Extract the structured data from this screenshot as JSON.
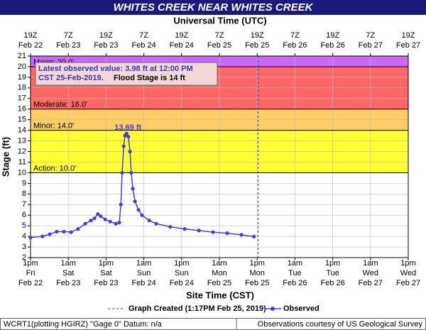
{
  "chart_data": {
    "type": "line",
    "title": "WHITES CREEK NEAR WHITES CREEK",
    "x2_label": "Universal Time (UTC)",
    "x_label": "Site Time (CST)",
    "y_label": "Stage (ft)",
    "xlim": [
      0,
      120
    ],
    "ylim": [
      2,
      21
    ],
    "yticks": [
      2,
      3,
      4,
      5,
      6,
      7,
      8,
      9,
      10,
      11,
      12,
      13,
      14,
      15,
      16,
      17,
      18,
      19,
      20,
      21
    ],
    "xticks": [
      {
        "value": 0,
        "label": [
          "1pm",
          "Fri",
          "Feb 22"
        ]
      },
      {
        "value": 12,
        "label": [
          "1am",
          "Sat",
          "Feb 23"
        ]
      },
      {
        "value": 24,
        "label": [
          "1pm",
          "Sat",
          "Feb 23"
        ]
      },
      {
        "value": 36,
        "label": [
          "1am",
          "Sun",
          "Feb 24"
        ]
      },
      {
        "value": 48,
        "label": [
          "1pm",
          "Sun",
          "Feb 24"
        ]
      },
      {
        "value": 60,
        "label": [
          "1am",
          "Mon",
          "Feb 25"
        ]
      },
      {
        "value": 72,
        "label": [
          "1pm",
          "Mon",
          "Feb 25"
        ]
      },
      {
        "value": 84,
        "label": [
          "1am",
          "Tue",
          "Feb 26"
        ]
      },
      {
        "value": 96,
        "label": [
          "1pm",
          "Tue",
          "Feb 26"
        ]
      },
      {
        "value": 108,
        "label": [
          "1am",
          "Wed",
          "Feb 27"
        ]
      },
      {
        "value": 120,
        "label": [
          "1pm",
          "Wed",
          "Feb 27"
        ]
      }
    ],
    "x2ticks": [
      {
        "value": 0,
        "label": [
          "19Z",
          "Feb 22"
        ]
      },
      {
        "value": 12,
        "label": [
          "7Z",
          "Feb 23"
        ]
      },
      {
        "value": 24,
        "label": [
          "19Z",
          "Feb 23"
        ]
      },
      {
        "value": 36,
        "label": [
          "7Z",
          "Feb 24"
        ]
      },
      {
        "value": 48,
        "label": [
          "19Z",
          "Feb 24"
        ]
      },
      {
        "value": 60,
        "label": [
          "7Z",
          "Feb 25"
        ]
      },
      {
        "value": 72,
        "label": [
          "19Z",
          "Feb 25"
        ]
      },
      {
        "value": 84,
        "label": [
          "7Z",
          "Feb 26"
        ]
      },
      {
        "value": 96,
        "label": [
          "19Z",
          "Feb 26"
        ]
      },
      {
        "value": 108,
        "label": [
          "7Z",
          "Feb 27"
        ]
      },
      {
        "value": 120,
        "label": [
          "19Z",
          "Feb 27"
        ]
      }
    ],
    "grid": true,
    "flood_levels": [
      {
        "label": "Action: 10.0'",
        "value": 10,
        "color": "#ffff33"
      },
      {
        "label": "Minor: 14.0'",
        "value": 14,
        "color": "#ffcc66"
      },
      {
        "label": "Moderate: 16.0'",
        "value": 16,
        "color": "#ff6666"
      },
      {
        "label": "Major: 20.0'",
        "value": 20,
        "color": "#cc66ff"
      }
    ],
    "created": {
      "name": "Graph Created (1:17PM Feb 25, 2019)",
      "x": 72.3,
      "color": "#3333cc"
    },
    "annotation": {
      "lines": [
        "Latest observed value: 3.98 ft at 12:00 PM",
        "CST 25-Feb-2019."
      ],
      "flood_stage": "Flood Stage is 14 ft"
    },
    "series": [
      {
        "name": "Observed",
        "color": "#4040e0",
        "x": [
          0,
          3.8,
          6.1,
          8.3,
          10.6,
          12.9,
          15.1,
          17.4,
          19.2,
          20.3,
          21.4,
          22.3,
          23.7,
          25.3,
          27.1,
          28.2,
          28.7,
          29.1,
          29.6,
          30.0,
          30.5,
          31.1,
          31.6,
          32.0,
          32.5,
          33.2,
          34.3,
          35.4,
          37.7,
          39.9,
          44.4,
          49.0,
          53.5,
          58.0,
          62.5,
          67.0,
          71
        ],
        "values": [
          3.9,
          4.0,
          4.2,
          4.45,
          4.45,
          4.4,
          4.7,
          5.2,
          5.5,
          5.7,
          6.1,
          5.9,
          5.6,
          5.4,
          5.2,
          5.3,
          7.0,
          10.0,
          12.5,
          13.5,
          13.69,
          13.4,
          12.0,
          10.0,
          8.5,
          7.3,
          6.5,
          6.0,
          5.5,
          5.2,
          4.9,
          4.7,
          4.55,
          4.4,
          4.3,
          4.15,
          3.98
        ],
        "value_labels": [
          null,
          null,
          null,
          null,
          null,
          null,
          null,
          null,
          null,
          null,
          null,
          null,
          null,
          null,
          null,
          null,
          null,
          null,
          null,
          null,
          "13.69 ft",
          null,
          null,
          null,
          null,
          null,
          null,
          null,
          null,
          null,
          null,
          null,
          null,
          null,
          null,
          null,
          null
        ]
      }
    ],
    "footer_left": "WCRT1(plotting HGIRZ) \"Gage 0\" Datum: n/a",
    "footer_right": "Observations courtesy of US Geological Survey"
  }
}
